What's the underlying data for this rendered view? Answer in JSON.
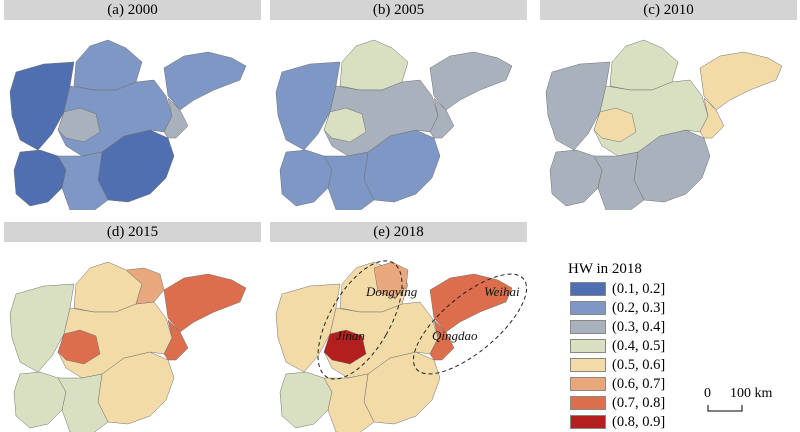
{
  "panels": [
    {
      "title": "(a) 2000"
    },
    {
      "title": "(b) 2005"
    },
    {
      "title": "(c) 2010"
    },
    {
      "title": "(d) 2015"
    },
    {
      "title": "(e) 2018"
    }
  ],
  "legend": {
    "title": "HW in 2018",
    "items": [
      {
        "label": "(0.1, 0.2]",
        "color": "#4f6fb0"
      },
      {
        "label": "(0.2, 0.3]",
        "color": "#7f97c4"
      },
      {
        "label": "(0.3, 0.4]",
        "color": "#a9b1bc"
      },
      {
        "label": "(0.4, 0.5]",
        "color": "#d9e0c1"
      },
      {
        "label": "(0.5, 0.6]",
        "color": "#f3dba8"
      },
      {
        "label": "(0.6, 0.7]",
        "color": "#e9a77c"
      },
      {
        "label": "(0.7, 0.8]",
        "color": "#dc6e4e"
      },
      {
        "label": "(0.8, 0.9]",
        "color": "#b31f1f"
      }
    ]
  },
  "annotations": {
    "dongying": "Dongying",
    "weihai": "Weihai",
    "jinan": "Jinan",
    "qingdao": "Qingdao"
  },
  "scale": {
    "zero": "0",
    "distance": "100 km"
  }
}
